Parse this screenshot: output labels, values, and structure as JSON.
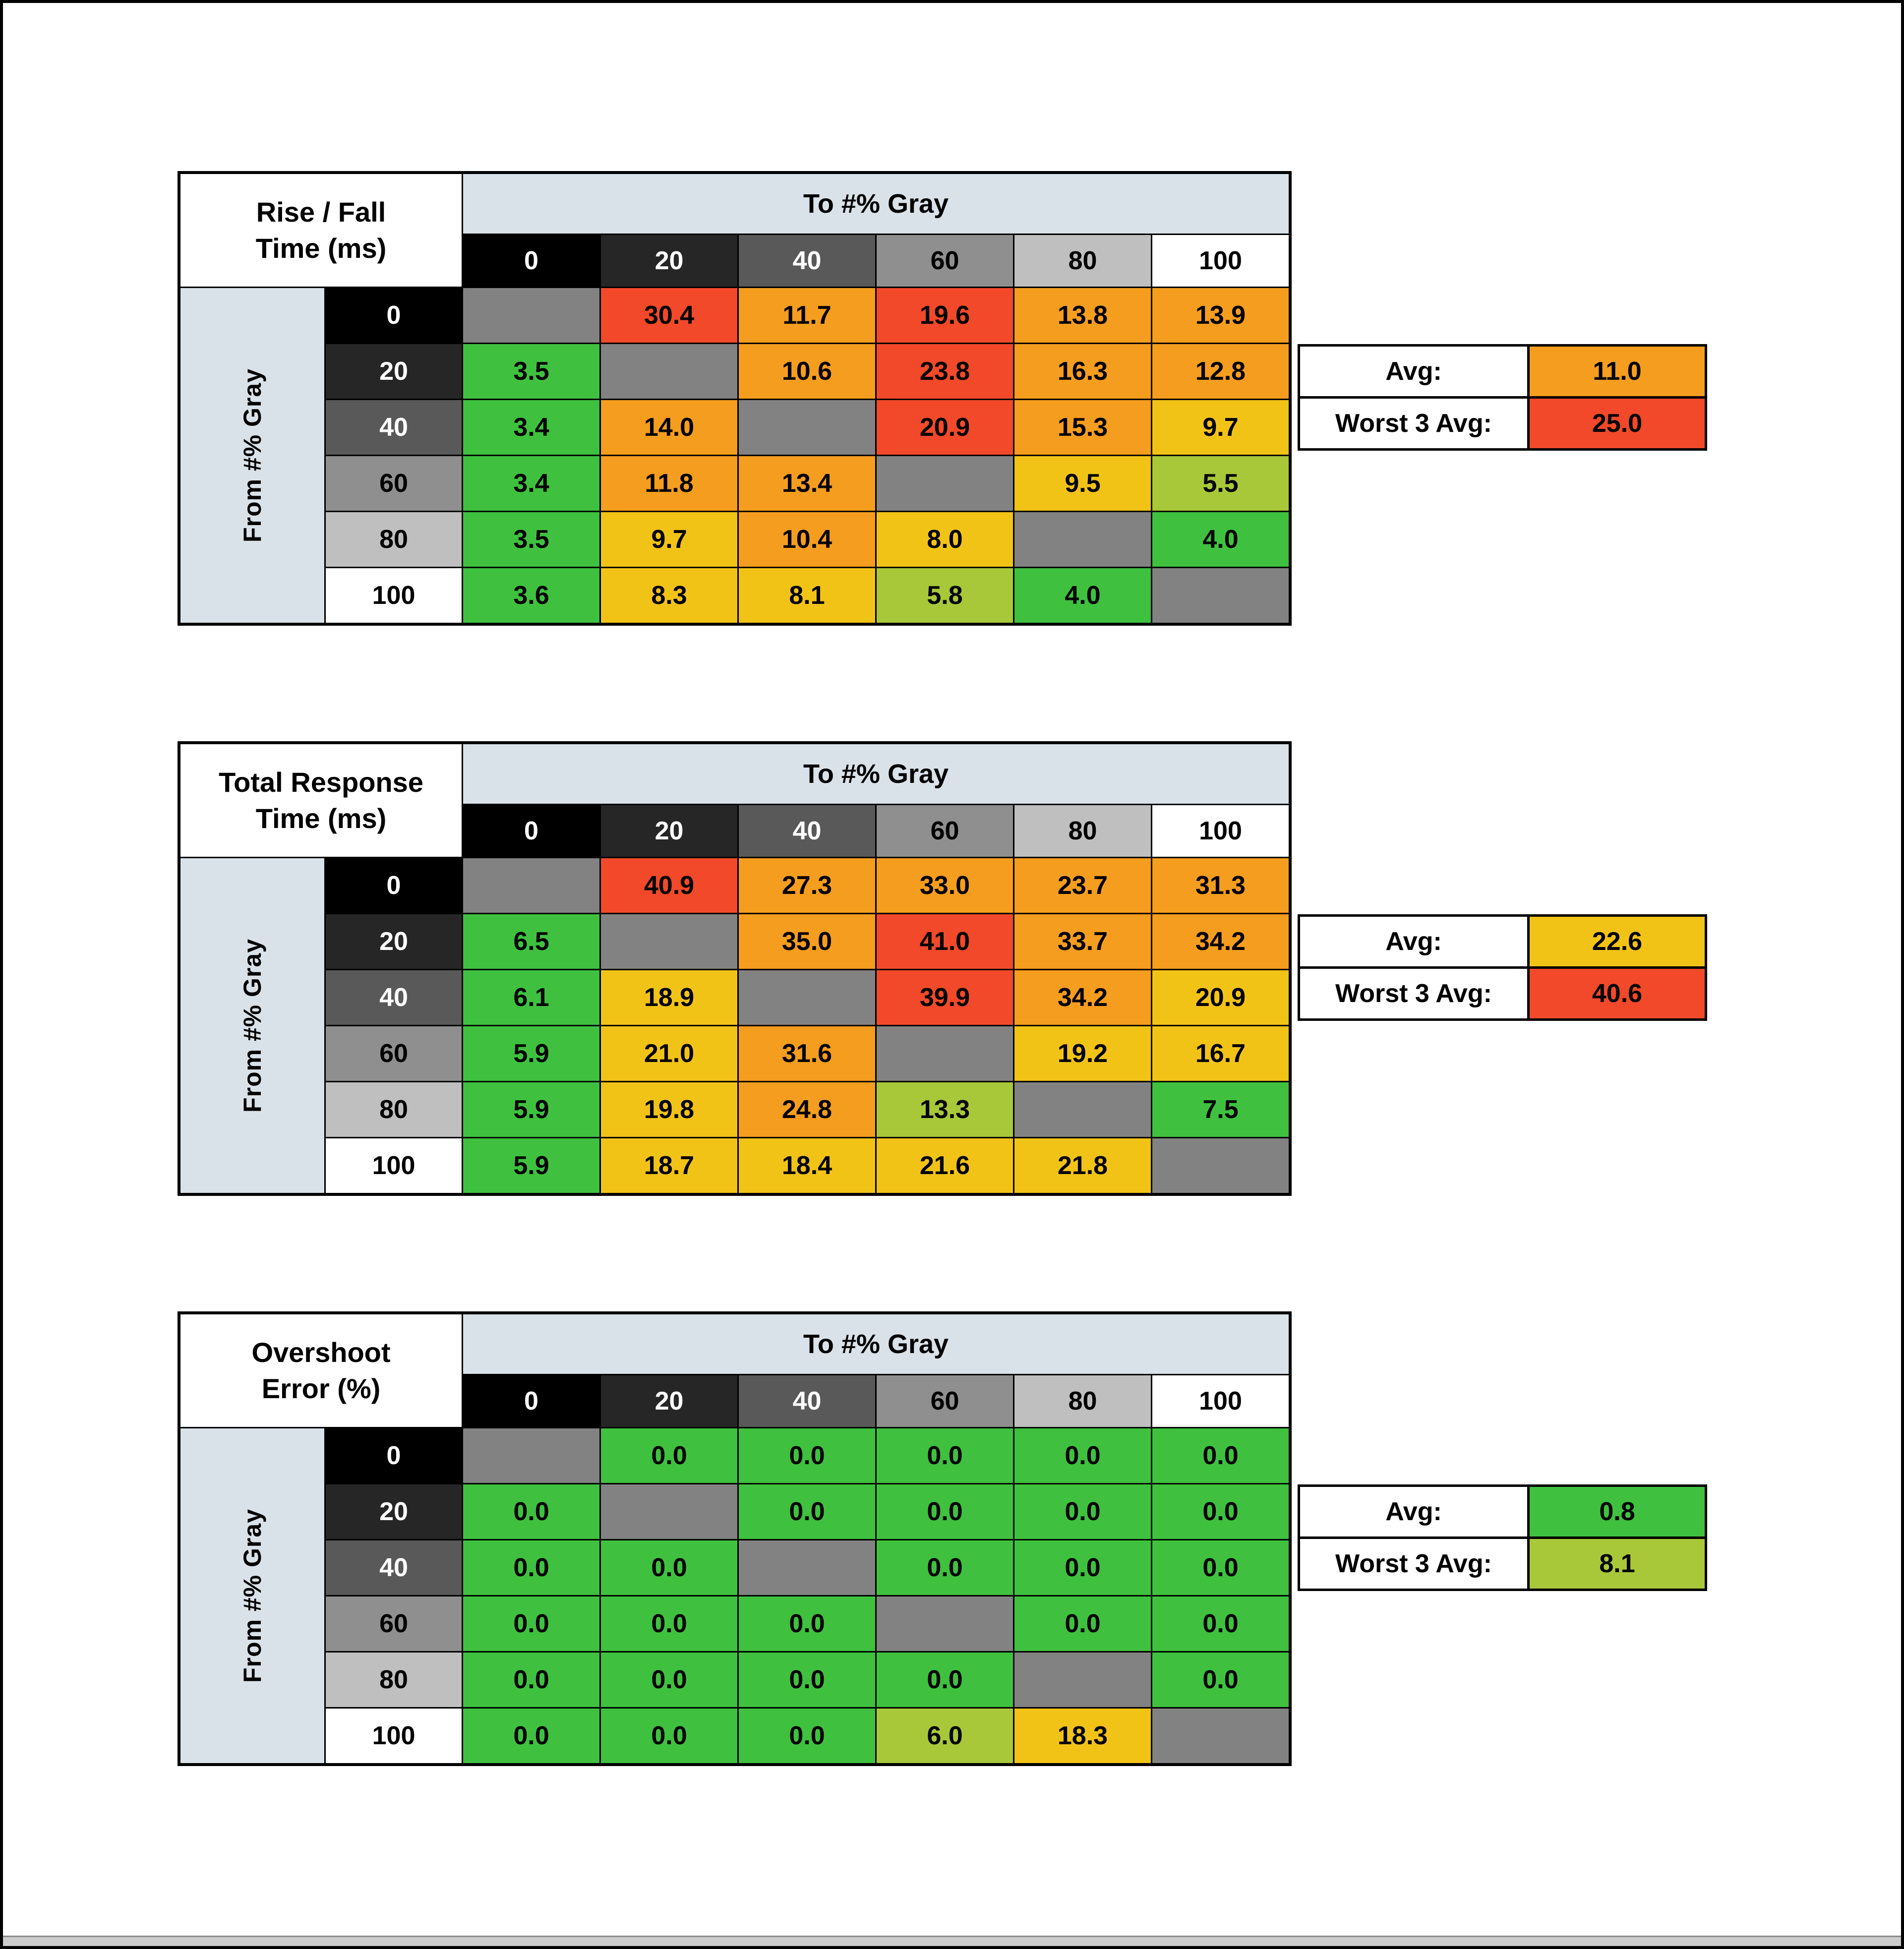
{
  "page": {
    "background": "#ffffff",
    "border_color": "#000000",
    "bottom_strip_color": "#cccccc"
  },
  "palette": {
    "green": "#3fc13f",
    "yellowgreen": "#a8c83a",
    "gold": "#f2c317",
    "orange": "#f59d1e",
    "red": "#f1492a",
    "diagonal": "#828282",
    "band": "#d9e2e8",
    "header_bg": [
      "#000000",
      "#262626",
      "#595959",
      "#8f8f8f",
      "#bfbfbf",
      "#ffffff"
    ],
    "header_fg": [
      "#ffffff",
      "#ffffff",
      "#ffffff",
      "#000000",
      "#000000",
      "#000000"
    ]
  },
  "shared": {
    "to_label": "To #% Gray",
    "from_label": "From #% Gray",
    "levels": [
      "0",
      "20",
      "40",
      "60",
      "80",
      "100"
    ],
    "avg_label": "Avg:",
    "worst_label": "Worst 3 Avg:"
  },
  "chart_data": [
    {
      "type": "heatmap",
      "id": "rise-fall-time",
      "title": "Rise / Fall Time (ms)",
      "title_lines": [
        "Rise / Fall",
        "Time (ms)"
      ],
      "x_axis": "To #% Gray",
      "y_axis": "From #% Gray",
      "x_categories": [
        "0",
        "20",
        "40",
        "60",
        "80",
        "100"
      ],
      "y_categories": [
        "0",
        "20",
        "40",
        "60",
        "80",
        "100"
      ],
      "values": [
        [
          null,
          30.4,
          11.7,
          19.6,
          13.8,
          13.9
        ],
        [
          3.5,
          null,
          10.6,
          23.8,
          16.3,
          12.8
        ],
        [
          3.4,
          14.0,
          null,
          20.9,
          15.3,
          9.7
        ],
        [
          3.4,
          11.8,
          13.4,
          null,
          9.5,
          5.5
        ],
        [
          3.5,
          9.7,
          10.4,
          8.0,
          null,
          4.0
        ],
        [
          3.6,
          8.3,
          8.1,
          5.8,
          4.0,
          null
        ]
      ],
      "cell_colors": [
        [
          "diagonal",
          "red",
          "orange",
          "red",
          "orange",
          "orange"
        ],
        [
          "green",
          "diagonal",
          "orange",
          "red",
          "orange",
          "orange"
        ],
        [
          "green",
          "orange",
          "diagonal",
          "red",
          "orange",
          "gold"
        ],
        [
          "green",
          "orange",
          "orange",
          "diagonal",
          "gold",
          "yellowgreen"
        ],
        [
          "green",
          "gold",
          "orange",
          "gold",
          "diagonal",
          "green"
        ],
        [
          "green",
          "gold",
          "gold",
          "yellowgreen",
          "green",
          "diagonal"
        ]
      ],
      "avg": {
        "label": "Avg:",
        "value": 11.0,
        "color": "orange"
      },
      "worst3": {
        "label": "Worst 3 Avg:",
        "value": 25.0,
        "color": "red"
      }
    },
    {
      "type": "heatmap",
      "id": "total-response-time",
      "title": "Total Response Time (ms)",
      "title_lines": [
        "Total Response",
        "Time (ms)"
      ],
      "x_axis": "To #% Gray",
      "y_axis": "From #% Gray",
      "x_categories": [
        "0",
        "20",
        "40",
        "60",
        "80",
        "100"
      ],
      "y_categories": [
        "0",
        "20",
        "40",
        "60",
        "80",
        "100"
      ],
      "values": [
        [
          null,
          40.9,
          27.3,
          33.0,
          23.7,
          31.3
        ],
        [
          6.5,
          null,
          35.0,
          41.0,
          33.7,
          34.2
        ],
        [
          6.1,
          18.9,
          null,
          39.9,
          34.2,
          20.9
        ],
        [
          5.9,
          21.0,
          31.6,
          null,
          19.2,
          16.7
        ],
        [
          5.9,
          19.8,
          24.8,
          13.3,
          null,
          7.5
        ],
        [
          5.9,
          18.7,
          18.4,
          21.6,
          21.8,
          null
        ]
      ],
      "cell_colors": [
        [
          "diagonal",
          "red",
          "orange",
          "orange",
          "orange",
          "orange"
        ],
        [
          "green",
          "diagonal",
          "orange",
          "red",
          "orange",
          "orange"
        ],
        [
          "green",
          "gold",
          "diagonal",
          "red",
          "orange",
          "gold"
        ],
        [
          "green",
          "gold",
          "orange",
          "diagonal",
          "gold",
          "gold"
        ],
        [
          "green",
          "gold",
          "orange",
          "yellowgreen",
          "diagonal",
          "green"
        ],
        [
          "green",
          "gold",
          "gold",
          "gold",
          "gold",
          "diagonal"
        ]
      ],
      "avg": {
        "label": "Avg:",
        "value": 22.6,
        "color": "gold"
      },
      "worst3": {
        "label": "Worst 3 Avg:",
        "value": 40.6,
        "color": "red"
      }
    },
    {
      "type": "heatmap",
      "id": "overshoot-error",
      "title": "Overshoot Error (%)",
      "title_lines": [
        "Overshoot",
        "Error (%)"
      ],
      "x_axis": "To #% Gray",
      "y_axis": "From #% Gray",
      "x_categories": [
        "0",
        "20",
        "40",
        "60",
        "80",
        "100"
      ],
      "y_categories": [
        "0",
        "20",
        "40",
        "60",
        "80",
        "100"
      ],
      "values": [
        [
          null,
          0.0,
          0.0,
          0.0,
          0.0,
          0.0
        ],
        [
          0.0,
          null,
          0.0,
          0.0,
          0.0,
          0.0
        ],
        [
          0.0,
          0.0,
          null,
          0.0,
          0.0,
          0.0
        ],
        [
          0.0,
          0.0,
          0.0,
          null,
          0.0,
          0.0
        ],
        [
          0.0,
          0.0,
          0.0,
          0.0,
          null,
          0.0
        ],
        [
          0.0,
          0.0,
          0.0,
          6.0,
          18.3,
          null
        ]
      ],
      "cell_colors": [
        [
          "diagonal",
          "green",
          "green",
          "green",
          "green",
          "green"
        ],
        [
          "green",
          "diagonal",
          "green",
          "green",
          "green",
          "green"
        ],
        [
          "green",
          "green",
          "diagonal",
          "green",
          "green",
          "green"
        ],
        [
          "green",
          "green",
          "green",
          "diagonal",
          "green",
          "green"
        ],
        [
          "green",
          "green",
          "green",
          "green",
          "diagonal",
          "green"
        ],
        [
          "green",
          "green",
          "green",
          "yellowgreen",
          "gold",
          "diagonal"
        ]
      ],
      "avg": {
        "label": "Avg:",
        "value": 0.8,
        "color": "green"
      },
      "worst3": {
        "label": "Worst 3 Avg:",
        "value": 8.1,
        "color": "yellowgreen"
      }
    }
  ]
}
